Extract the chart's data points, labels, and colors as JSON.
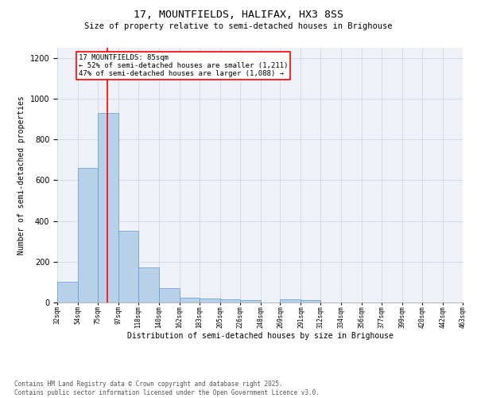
{
  "title": "17, MOUNTFIELDS, HALIFAX, HX3 8SS",
  "subtitle": "Size of property relative to semi-detached houses in Brighouse",
  "xlabel": "Distribution of semi-detached houses by size in Brighouse",
  "ylabel": "Number of semi-detached properties",
  "bar_color": "#b8d0e8",
  "bar_edge_color": "#5b9bd5",
  "grid_color": "#d0d8e8",
  "background_color": "#eef2f8",
  "bins": [
    32,
    54,
    75,
    97,
    118,
    140,
    162,
    183,
    205,
    226,
    248,
    269,
    291,
    312,
    334,
    356,
    377,
    399,
    420,
    442,
    463
  ],
  "values": [
    100,
    660,
    930,
    350,
    170,
    70,
    25,
    20,
    15,
    10,
    0,
    15,
    10,
    0,
    0,
    0,
    0,
    0,
    0,
    0
  ],
  "red_line_x": 85,
  "annotation_title": "17 MOUNTFIELDS: 85sqm",
  "annotation_line1": "← 52% of semi-detached houses are smaller (1,211)",
  "annotation_line2": "47% of semi-detached houses are larger (1,088) →",
  "ylim": [
    0,
    1250
  ],
  "yticks": [
    0,
    200,
    400,
    600,
    800,
    1000,
    1200
  ],
  "footer_line1": "Contains HM Land Registry data © Crown copyright and database right 2025.",
  "footer_line2": "Contains public sector information licensed under the Open Government Licence v3.0."
}
